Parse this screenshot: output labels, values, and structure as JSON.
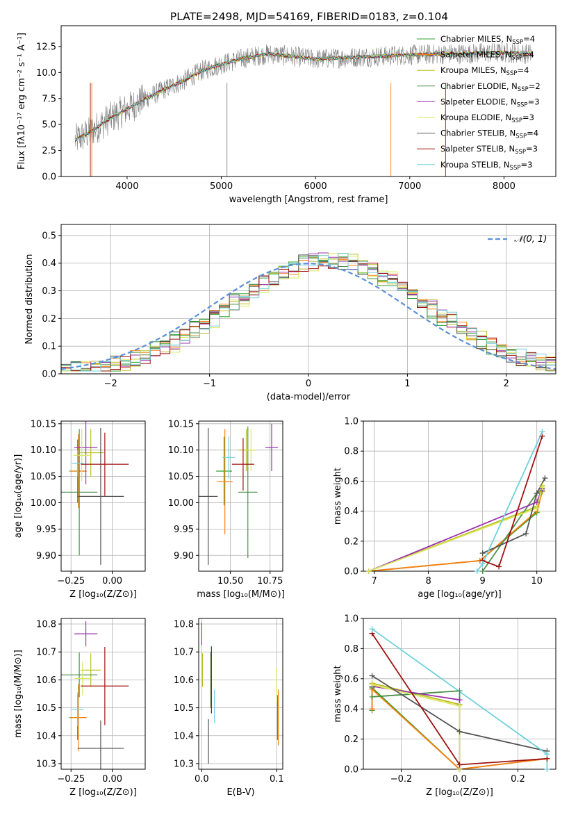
{
  "figure": {
    "title": "PLATE=2498, MJD=54169, FIBERID=0183, z=0.104"
  },
  "series_colors": [
    "#2ca02c",
    "#ff7f0e",
    "#bcbd22",
    "#4a8f4a",
    "#9b30b0",
    "#d8e85a",
    "#555555",
    "#a01010",
    "#6dd0dd"
  ],
  "chart_data": [
    {
      "id": "spectrum",
      "type": "line",
      "xlabel": "wavelength [Angstrom, rest frame]",
      "ylabel": "Flux [fλ10⁻¹⁷ erg cm⁻² s⁻¹ A⁻¹]",
      "xlim": [
        3300,
        8550
      ],
      "ylim": [
        0,
        14.5
      ],
      "xticks": [
        "4000",
        "5000",
        "6000",
        "7000",
        "8000"
      ],
      "yticks": [
        "0.0",
        "2.5",
        "5.0",
        "7.5",
        "10.0",
        "12.5"
      ],
      "grid": false,
      "legend_position": "right",
      "legend": [
        "Chabrier MILES, NSSP=4",
        "Salpeter MILES, NSSP=4",
        "Kroupa MILES, NSSP=4",
        "Chabrier ELODIE, NSSP=2",
        "Salpeter ELODIE, NSSP=3",
        "Kroupa ELODIE, NSSP=3",
        "Chabrier STELIB, NSSP=4",
        "Salpeter STELIB, NSSP=3",
        "Kroupa STELIB, NSSP=3"
      ],
      "data_trend": {
        "x": [
          3450,
          3600,
          3800,
          4000,
          4200,
          4400,
          4600,
          4800,
          5000,
          5200,
          5500,
          6000,
          6500,
          7000,
          7500,
          8000,
          8300
        ],
        "y": [
          3.5,
          4.2,
          5.5,
          6.5,
          7.5,
          8.4,
          9.2,
          10.2,
          10.8,
          11.3,
          11.8,
          11.3,
          11.5,
          11.7,
          11.8,
          11.9,
          11.8
        ]
      }
    },
    {
      "id": "residuals",
      "type": "histogram",
      "xlabel": "(data-model)/error",
      "ylabel": "Normed distribution",
      "xlim": [
        -2.5,
        2.5
      ],
      "ylim": [
        0,
        0.54
      ],
      "xticks": [
        "−2",
        "−1",
        "0",
        "1",
        "2"
      ],
      "yticks": [
        "0.0",
        "0.1",
        "0.2",
        "0.3",
        "0.4",
        "0.5"
      ],
      "grid": true,
      "legend": [
        "𝒩(0, 1)"
      ],
      "bin_width": 0.1
    },
    {
      "id": "age_vs_Z",
      "type": "errorbar",
      "xlabel": "Z [log₁₀(Z/Z⊙)]",
      "ylabel": "age  [log₁₀(age/yr)]",
      "xlim": [
        -0.31,
        0.2
      ],
      "ylim": [
        9.87,
        10.155
      ],
      "xticks": [
        "−0.25",
        "0.00"
      ],
      "yticks": [
        "9.90",
        "9.95",
        "10.00",
        "10.05",
        "10.10",
        "10.15"
      ],
      "grid": true,
      "points": [
        {
          "x": -0.21,
          "xerr": 0.05,
          "y": 10.06,
          "yerr": 0.06
        },
        {
          "x": -0.205,
          "xerr": 0.05,
          "y": 10.06,
          "yerr": 0.07
        },
        {
          "x": -0.13,
          "xerr": 0.08,
          "y": 10.095,
          "yerr": 0.045
        },
        {
          "x": -0.2,
          "xerr": 0.11,
          "y": 10.02,
          "yerr": 0.12
        },
        {
          "x": -0.16,
          "xerr": 0.07,
          "y": 10.105,
          "yerr": 0.07
        },
        {
          "x": -0.185,
          "xerr": 0.05,
          "y": 10.09,
          "yerr": 0.05
        },
        {
          "x": -0.07,
          "xerr": 0.14,
          "y": 10.012,
          "yerr": 0.13
        },
        {
          "x": -0.045,
          "xerr": 0.145,
          "y": 10.073,
          "yerr": 0.06
        },
        {
          "x": -0.21,
          "xerr": 0.035,
          "y": 10.075,
          "yerr": 0.025
        }
      ]
    },
    {
      "id": "age_vs_mass",
      "type": "errorbar",
      "xlabel": "mass [log₁₀(M/M⊙)]",
      "ylabel": "",
      "xlim": [
        10.3,
        10.83
      ],
      "ylim": [
        9.87,
        10.155
      ],
      "xticks": [
        "10.50",
        "10.75"
      ],
      "yticks": [
        "9.90",
        "9.95",
        "10.00",
        "10.05",
        "10.10",
        "10.15"
      ],
      "grid": true,
      "points": [
        {
          "x": 10.46,
          "xerr": 0.05,
          "y": 10.06,
          "yerr": 0.065
        },
        {
          "x": 10.465,
          "xerr": 0.05,
          "y": 10.04,
          "yerr": 0.1
        },
        {
          "x": 10.6,
          "xerr": 0.05,
          "y": 10.1,
          "yerr": 0.04
        },
        {
          "x": 10.61,
          "xerr": 0.06,
          "y": 10.02,
          "yerr": 0.125
        },
        {
          "x": 10.76,
          "xerr": 0.04,
          "y": 10.105,
          "yerr": 0.045
        },
        {
          "x": 10.63,
          "xerr": 0.03,
          "y": 10.1,
          "yerr": 0.04
        },
        {
          "x": 10.36,
          "xerr": 0.06,
          "y": 10.012,
          "yerr": 0.13
        },
        {
          "x": 10.58,
          "xerr": 0.07,
          "y": 10.073,
          "yerr": 0.05
        },
        {
          "x": 10.49,
          "xerr": 0.04,
          "y": 10.086,
          "yerr": 0.04
        }
      ]
    },
    {
      "id": "weight_vs_age",
      "type": "line",
      "xlabel": "age  [log₁₀(age/yr)]",
      "ylabel": "mass weight",
      "xlim": [
        6.8,
        10.35
      ],
      "ylim": [
        0,
        1
      ],
      "xticks": [
        "7",
        "8",
        "9",
        "10"
      ],
      "yticks": [
        "0.0",
        "0.2",
        "0.4",
        "0.6",
        "0.8",
        "1.0"
      ],
      "grid": true,
      "series": [
        {
          "x": [
            6.9,
            8.95,
            10.0,
            10.1
          ],
          "y": [
            0.0,
            0.07,
            0.39,
            0.54
          ]
        },
        {
          "x": [
            6.9,
            8.95,
            10.0,
            10.1
          ],
          "y": [
            0.0,
            0.07,
            0.4,
            0.53
          ]
        },
        {
          "x": [
            6.9,
            10.0,
            10.1
          ],
          "y": [
            0.0,
            0.43,
            0.57
          ]
        },
        {
          "x": [
            9.0,
            10.0,
            10.1
          ],
          "y": [
            0.0,
            0.52,
            0.54
          ]
        },
        {
          "x": [
            6.9,
            10.0,
            10.1
          ],
          "y": [
            0.0,
            0.46,
            0.55
          ]
        },
        {
          "x": [
            6.9,
            10.0,
            10.1
          ],
          "y": [
            0.0,
            0.42,
            0.56
          ]
        },
        {
          "x": [
            9.0,
            9.8,
            10.0,
            10.15
          ],
          "y": [
            0.12,
            0.25,
            0.52,
            0.62
          ]
        },
        {
          "x": [
            9.0,
            9.3,
            10.1
          ],
          "y": [
            0.07,
            0.03,
            0.9
          ]
        },
        {
          "x": [
            8.9,
            9.0,
            10.1
          ],
          "y": [
            0.0,
            0.05,
            0.93
          ]
        }
      ]
    },
    {
      "id": "mass_vs_Z",
      "type": "errorbar",
      "xlabel": "Z [log₁₀(Z/Z⊙)]",
      "ylabel": "mass [log₁₀(M/M⊙)]",
      "xlim": [
        -0.31,
        0.2
      ],
      "ylim": [
        10.28,
        10.82
      ],
      "xticks": [
        "−0.25",
        "0.00"
      ],
      "yticks": [
        "10.3",
        "10.4",
        "10.5",
        "10.6",
        "10.7",
        "10.8"
      ],
      "grid": true,
      "points": [
        {
          "x": -0.21,
          "xerr": 0.05,
          "y": 10.465,
          "yerr": 0.08
        },
        {
          "x": -0.205,
          "xerr": 0.05,
          "y": 10.465,
          "yerr": 0.12
        },
        {
          "x": -0.13,
          "xerr": 0.06,
          "y": 10.635,
          "yerr": 0.06
        },
        {
          "x": -0.2,
          "xerr": 0.11,
          "y": 10.618,
          "yerr": 0.08
        },
        {
          "x": -0.16,
          "xerr": 0.07,
          "y": 10.765,
          "yerr": 0.045
        },
        {
          "x": -0.18,
          "xerr": 0.05,
          "y": 10.605,
          "yerr": 0.06
        },
        {
          "x": -0.07,
          "xerr": 0.14,
          "y": 10.355,
          "yerr": 0.1
        },
        {
          "x": -0.045,
          "xerr": 0.145,
          "y": 10.578,
          "yerr": 0.14
        },
        {
          "x": -0.21,
          "xerr": 0.035,
          "y": 10.495,
          "yerr": 0.06
        }
      ]
    },
    {
      "id": "mass_vs_ebv",
      "type": "errorbar",
      "xlabel": "E(B-V)",
      "ylabel": "",
      "xlim": [
        -0.004,
        0.108
      ],
      "ylim": [
        10.28,
        10.82
      ],
      "xticks": [
        "0.0",
        "0.1"
      ],
      "yticks": [
        "10.3",
        "10.4",
        "10.5",
        "10.6",
        "10.7",
        "10.8"
      ],
      "grid": true,
      "points": [
        {
          "x": 0.101,
          "xerr": 0.0,
          "y": 10.465,
          "yerr": 0.08
        },
        {
          "x": 0.102,
          "xerr": 0.0,
          "y": 10.465,
          "yerr": 0.1
        },
        {
          "x": 0.001,
          "xerr": 0.0,
          "y": 10.635,
          "yerr": 0.06
        },
        {
          "x": 0.012,
          "xerr": 0.0,
          "y": 10.6,
          "yerr": 0.1
        },
        {
          "x": 0.0,
          "xerr": 0.0,
          "y": 10.765,
          "yerr": 0.04
        },
        {
          "x": 0.1,
          "xerr": 0.0,
          "y": 10.58,
          "yerr": 0.06
        },
        {
          "x": 0.009,
          "xerr": 0.0,
          "y": 10.38,
          "yerr": 0.08
        },
        {
          "x": 0.013,
          "xerr": 0.0,
          "y": 10.6,
          "yerr": 0.12
        },
        {
          "x": 0.017,
          "xerr": 0.0,
          "y": 10.505,
          "yerr": 0.06
        }
      ]
    },
    {
      "id": "weight_vs_Z",
      "type": "line",
      "xlabel": "Z [log₁₀(Z/Z⊙)]",
      "ylabel": "mass weight",
      "xlim": [
        -0.33,
        0.33
      ],
      "ylim": [
        0,
        1
      ],
      "xticks": [
        "−0.2",
        "0.0",
        "0.2"
      ],
      "yticks": [
        "0.0",
        "0.2",
        "0.4",
        "0.6",
        "0.8",
        "1.0"
      ],
      "grid": true,
      "series": [
        {
          "x": [
            -0.3,
            -0.3,
            0.0,
            0.3
          ],
          "y": [
            0.39,
            0.54,
            0.0,
            0.07
          ]
        },
        {
          "x": [
            -0.3,
            -0.3,
            0.0,
            0.3
          ],
          "y": [
            0.4,
            0.53,
            0.0,
            0.07
          ]
        },
        {
          "x": [
            -0.3,
            0.0,
            0.0
          ],
          "y": [
            0.57,
            0.43,
            0.0
          ]
        },
        {
          "x": [
            -0.3,
            0.0,
            0.0
          ],
          "y": [
            0.48,
            0.52,
            0.0
          ]
        },
        {
          "x": [
            -0.3,
            0.0,
            0.0
          ],
          "y": [
            0.55,
            0.46,
            0.0
          ]
        },
        {
          "x": [
            -0.3,
            0.0,
            0.0
          ],
          "y": [
            0.56,
            0.42,
            0.0
          ]
        },
        {
          "x": [
            -0.3,
            0.0,
            0.3
          ],
          "y": [
            0.62,
            0.25,
            0.12
          ]
        },
        {
          "x": [
            -0.3,
            0.0,
            0.3
          ],
          "y": [
            0.9,
            0.03,
            0.07
          ]
        },
        {
          "x": [
            -0.3,
            0.3,
            0.3
          ],
          "y": [
            0.93,
            0.1,
            0.0
          ]
        }
      ]
    }
  ]
}
